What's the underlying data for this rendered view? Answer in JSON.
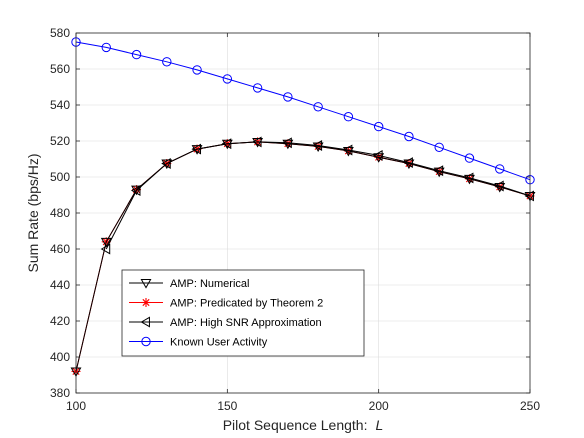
{
  "chart_data": {
    "type": "line",
    "xlabel_main": "Pilot Sequence Length:",
    "xlabel_var": "L",
    "ylabel": "Sum Rate (bps/Hz)",
    "xlim": [
      100,
      250
    ],
    "ylim": [
      380,
      580
    ],
    "xticks": [
      100,
      150,
      200,
      250
    ],
    "yticks": [
      380,
      400,
      420,
      440,
      460,
      480,
      500,
      520,
      540,
      560,
      580
    ],
    "grid": true,
    "legend_position": "lower-left",
    "series": [
      {
        "name": "AMP: Numerical",
        "color": "#000000",
        "marker": "triangle-down",
        "x": [
          100,
          110,
          120,
          130,
          140,
          150,
          160,
          170,
          180,
          190,
          200,
          210,
          220,
          230,
          240,
          250
        ],
        "y": [
          392,
          464,
          493,
          507.5,
          515.5,
          518.5,
          519.5,
          518.5,
          517,
          514.5,
          511,
          507.5,
          503,
          499,
          494.5,
          489.5
        ]
      },
      {
        "name": "AMP: Predicated by Theorem 2",
        "color": "#ff0000",
        "marker": "asterisk",
        "x": [
          100,
          110,
          120,
          130,
          140,
          150,
          160,
          170,
          180,
          190,
          200,
          210,
          220,
          230,
          240,
          250
        ],
        "y": [
          392,
          464,
          493,
          507.5,
          515.5,
          518.5,
          519.5,
          518.5,
          517,
          514.5,
          511,
          507.5,
          503,
          499,
          494.5,
          489.5
        ]
      },
      {
        "name": "AMP: High SNR Approximation",
        "color": "#000000",
        "marker": "triangle-left",
        "x": [
          110,
          120,
          130,
          140,
          150,
          160,
          170,
          180,
          190,
          200,
          210,
          220,
          230,
          240,
          250
        ],
        "y": [
          460,
          492.5,
          507.5,
          515.5,
          518.5,
          519.5,
          519,
          517.5,
          515,
          512,
          508,
          503.5,
          499.5,
          495,
          489.5
        ]
      },
      {
        "name": "Known User Activity",
        "color": "#0000ff",
        "marker": "circle",
        "x": [
          100,
          110,
          120,
          130,
          140,
          150,
          160,
          170,
          180,
          190,
          200,
          210,
          220,
          230,
          240,
          250
        ],
        "y": [
          575,
          572,
          568,
          564,
          559.5,
          554.5,
          549.5,
          544.5,
          539,
          533.5,
          528,
          522.5,
          516.5,
          510.5,
          504.5,
          498.5
        ]
      }
    ]
  }
}
